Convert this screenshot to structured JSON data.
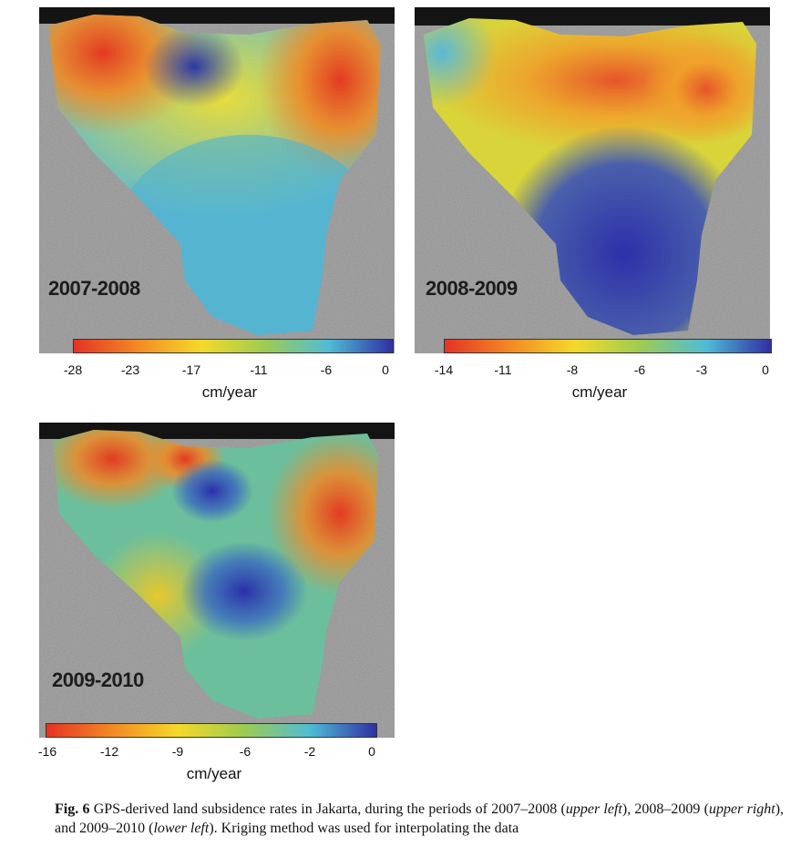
{
  "figure": {
    "panels": [
      {
        "period": "2007-2008",
        "colorbar_ticks": [
          "-28",
          "-23",
          "-17",
          "-11",
          "-6",
          "0"
        ],
        "unit": "cm/year"
      },
      {
        "period": "2008-2009",
        "colorbar_ticks": [
          "-14",
          "-11",
          "-8",
          "-6",
          "-3",
          "0"
        ],
        "unit": "cm/year"
      },
      {
        "period": "2009-2010",
        "colorbar_ticks": [
          "-16",
          "-12",
          "-9",
          "-6",
          "-2",
          "0"
        ],
        "unit": "cm/year"
      }
    ],
    "colorbar_colors": [
      "#e53324",
      "#f28a24",
      "#f5d92a",
      "#9ccc52",
      "#4fbcd6",
      "#2f2fa3"
    ]
  },
  "caption": {
    "label": "Fig. 6",
    "text_1": " GPS-derived land subsidence rates in Jakarta, during the periods of 2007–2008 (",
    "pos_1": "upper left",
    "text_2": "), 2008–2009 (",
    "pos_2": "upper right",
    "text_3": "), and 2009–2010 (",
    "pos_3": "lower left",
    "text_4": "). Kriging method was used for interpolating the data"
  }
}
